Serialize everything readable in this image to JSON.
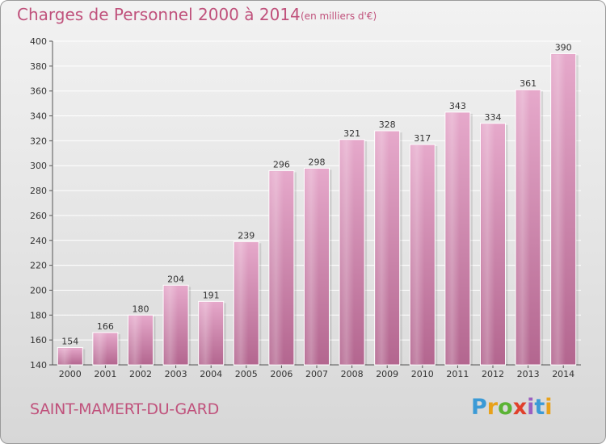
{
  "header": {
    "title": "Charges de Personnel 2000 à 2014",
    "unit": "(en milliers d'€)"
  },
  "footer": {
    "place": "SAINT-MAMERT-DU-GARD",
    "logo_text": "Proxiti"
  },
  "colors": {
    "title": "#c0527c",
    "bar_top": "#e6a6c9",
    "bar_bottom": "#b46690",
    "grid": "#ffffff"
  },
  "chart_data": {
    "type": "bar",
    "title": "Charges de Personnel 2000 à 2014",
    "subtitle": "(en milliers d'€)",
    "xlabel": "",
    "ylabel": "",
    "categories": [
      "2000",
      "2001",
      "2002",
      "2003",
      "2004",
      "2005",
      "2006",
      "2007",
      "2008",
      "2009",
      "2010",
      "2011",
      "2012",
      "2013",
      "2014"
    ],
    "values": [
      154,
      166,
      180,
      204,
      191,
      239,
      296,
      298,
      321,
      328,
      317,
      343,
      334,
      361,
      390
    ],
    "ylim": [
      140,
      400
    ],
    "yticks": [
      140,
      160,
      180,
      200,
      220,
      240,
      260,
      280,
      300,
      320,
      340,
      360,
      380,
      400
    ],
    "grid": true
  }
}
